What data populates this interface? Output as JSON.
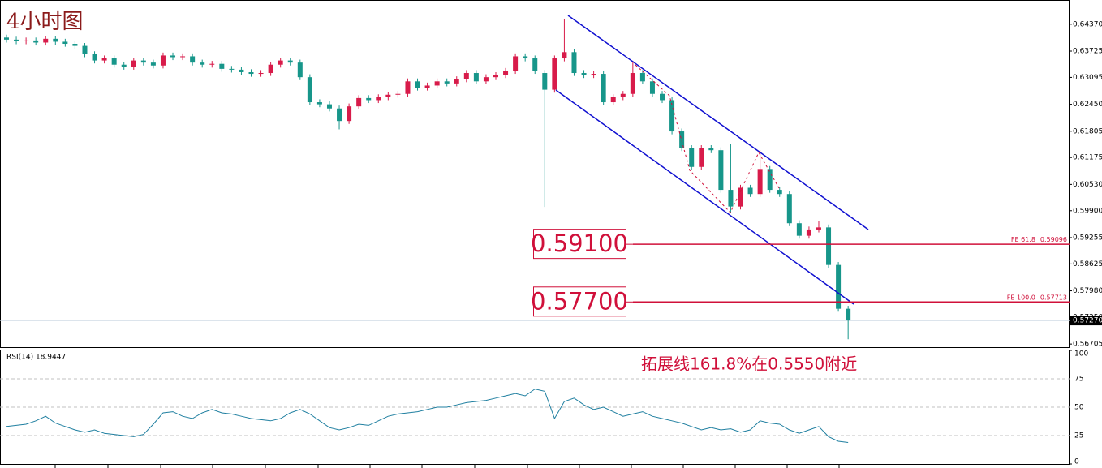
{
  "chart_data": [
    {
      "type": "candlestick",
      "title": "4小时图",
      "open": [
        0.6405,
        0.64,
        0.6396,
        0.6398,
        0.6393,
        0.6402,
        0.6395,
        0.639,
        0.6385,
        0.6365,
        0.635,
        0.6355,
        0.634,
        0.6335,
        0.635,
        0.6345,
        0.6338,
        0.6362,
        0.6358,
        0.636,
        0.6345,
        0.634,
        0.6342,
        0.633,
        0.6328,
        0.6322,
        0.6318,
        0.632,
        0.634,
        0.635,
        0.6345,
        0.631,
        0.625,
        0.6245,
        0.6235,
        0.6205,
        0.624,
        0.626,
        0.6255,
        0.6262,
        0.6268,
        0.627,
        0.63,
        0.6285,
        0.629,
        0.63,
        0.6295,
        0.6305,
        0.632,
        0.63,
        0.631,
        0.6315,
        0.6325,
        0.636,
        0.6355,
        0.632,
        0.628,
        0.6355,
        0.637,
        0.632,
        0.6315,
        0.6318,
        0.625,
        0.6262,
        0.627,
        0.632,
        0.63,
        0.627,
        0.6255,
        0.618,
        0.614,
        0.6095,
        0.614,
        0.6135,
        0.604,
        0.6,
        0.6045,
        0.603,
        0.609,
        0.604,
        0.603,
        0.596,
        0.593,
        0.5945,
        0.595,
        0.586,
        0.5755
      ],
      "high": [
        0.6412,
        0.6407,
        0.6405,
        0.6405,
        0.6409,
        0.6409,
        0.6402,
        0.6397,
        0.6392,
        0.6372,
        0.6362,
        0.6362,
        0.6347,
        0.6357,
        0.6357,
        0.6352,
        0.6369,
        0.6369,
        0.6367,
        0.6367,
        0.6352,
        0.6349,
        0.6349,
        0.6337,
        0.6335,
        0.6329,
        0.6327,
        0.6347,
        0.6357,
        0.6357,
        0.6352,
        0.6317,
        0.6257,
        0.6252,
        0.6242,
        0.6247,
        0.6267,
        0.6267,
        0.6269,
        0.6275,
        0.6277,
        0.6307,
        0.6307,
        0.6297,
        0.6307,
        0.6307,
        0.6312,
        0.6327,
        0.6327,
        0.6317,
        0.6322,
        0.6332,
        0.6367,
        0.6367,
        0.6362,
        0.6327,
        0.6362,
        0.645,
        0.6377,
        0.6327,
        0.6325,
        0.6325,
        0.6269,
        0.6277,
        0.6349,
        0.6327,
        0.6307,
        0.6277,
        0.6262,
        0.6187,
        0.6147,
        0.6147,
        0.6147,
        0.6142,
        0.615,
        0.6052,
        0.6052,
        0.6135,
        0.6097,
        0.6047,
        0.6037,
        0.5967,
        0.5952,
        0.5965,
        0.5957,
        0.5867,
        0.5762
      ],
      "low": [
        0.6393,
        0.6389,
        0.6389,
        0.6386,
        0.6386,
        0.6388,
        0.6383,
        0.6378,
        0.6358,
        0.6343,
        0.6343,
        0.6333,
        0.6328,
        0.6328,
        0.6338,
        0.6331,
        0.6331,
        0.6351,
        0.6351,
        0.6338,
        0.6333,
        0.6333,
        0.6323,
        0.6321,
        0.6315,
        0.6311,
        0.6311,
        0.6313,
        0.6333,
        0.6338,
        0.6303,
        0.6243,
        0.6238,
        0.6228,
        0.6185,
        0.6198,
        0.6233,
        0.6248,
        0.6248,
        0.6255,
        0.6261,
        0.6263,
        0.6278,
        0.6278,
        0.6283,
        0.6288,
        0.6288,
        0.6298,
        0.6293,
        0.6293,
        0.6303,
        0.6308,
        0.6318,
        0.6348,
        0.6318,
        0.5999,
        0.6273,
        0.6348,
        0.6313,
        0.6308,
        0.6308,
        0.6243,
        0.6243,
        0.6255,
        0.6263,
        0.6293,
        0.6263,
        0.6248,
        0.6173,
        0.6133,
        0.6088,
        0.6088,
        0.6128,
        0.6033,
        0.5985,
        0.5993,
        0.6023,
        0.6023,
        0.6033,
        0.6023,
        0.5953,
        0.5923,
        0.5923,
        0.5938,
        0.5853,
        0.5748,
        0.5682
      ],
      "close": [
        0.64,
        0.6396,
        0.6398,
        0.6393,
        0.6402,
        0.6395,
        0.639,
        0.6385,
        0.6365,
        0.635,
        0.6355,
        0.634,
        0.6335,
        0.635,
        0.6345,
        0.6338,
        0.6362,
        0.6358,
        0.636,
        0.6345,
        0.634,
        0.6342,
        0.633,
        0.6328,
        0.6322,
        0.6318,
        0.632,
        0.634,
        0.635,
        0.6345,
        0.631,
        0.625,
        0.6245,
        0.6235,
        0.6205,
        0.624,
        0.626,
        0.6255,
        0.6262,
        0.6268,
        0.627,
        0.63,
        0.6285,
        0.629,
        0.63,
        0.6295,
        0.6305,
        0.632,
        0.63,
        0.631,
        0.6315,
        0.6325,
        0.636,
        0.6355,
        0.6325,
        0.628,
        0.6355,
        0.637,
        0.632,
        0.6315,
        0.6318,
        0.625,
        0.6262,
        0.627,
        0.632,
        0.63,
        0.627,
        0.6255,
        0.618,
        0.614,
        0.6095,
        0.614,
        0.6135,
        0.604,
        0.6,
        0.6045,
        0.603,
        0.609,
        0.604,
        0.603,
        0.596,
        0.593,
        0.5945,
        0.595,
        0.586,
        0.5755,
        0.5727
      ],
      "up_color": "#d81b4a",
      "down_color": "#17968a",
      "ylim": [
        0.5663,
        0.6495
      ],
      "yticks": [
        {
          "value": 0.6437,
          "label": "0.64370"
        },
        {
          "value": 0.63725,
          "label": "0.63725"
        },
        {
          "value": 0.63095,
          "label": "0.63095"
        },
        {
          "value": 0.6245,
          "label": "0.62450"
        },
        {
          "value": 0.61805,
          "label": "0.61805"
        },
        {
          "value": 0.61175,
          "label": "0.61175"
        },
        {
          "value": 0.6053,
          "label": "0.60530"
        },
        {
          "value": 0.599,
          "label": "0.59900"
        },
        {
          "value": 0.59255,
          "label": "0.59255"
        },
        {
          "value": 0.58625,
          "label": "0.58625"
        },
        {
          "value": 0.5798,
          "label": "0.57980"
        },
        {
          "value": 0.5735,
          "label": "0.57350"
        },
        {
          "value": 0.56705,
          "label": "0.56705"
        }
      ],
      "last_price": {
        "value": 0.5727,
        "label": "0.57270"
      },
      "levels": [
        {
          "name": "FE 61.8",
          "value": 0.59096,
          "label": "0.59096",
          "callout": "0.59100"
        },
        {
          "name": "FE 100.0",
          "value": 0.57713,
          "label": "0.57713",
          "callout": "0.57700"
        }
      ]
    },
    {
      "type": "line",
      "title": "RSI(14) 18.9447",
      "color": "#1f7fa0",
      "values": [
        33,
        34,
        35,
        38,
        42,
        36,
        33,
        30,
        28,
        30,
        27,
        26,
        25,
        24,
        26,
        35,
        45,
        46,
        42,
        40,
        45,
        48,
        45,
        44,
        42,
        40,
        39,
        38,
        40,
        45,
        48,
        44,
        38,
        32,
        30,
        32,
        35,
        34,
        38,
        42,
        44,
        45,
        46,
        48,
        50,
        50,
        52,
        54,
        55,
        56,
        58,
        60,
        62,
        60,
        66,
        64,
        40,
        55,
        58,
        52,
        48,
        50,
        46,
        42,
        44,
        46,
        42,
        40,
        38,
        36,
        33,
        30,
        32,
        30,
        31,
        28,
        30,
        38,
        36,
        35,
        30,
        27,
        30,
        33,
        24,
        20,
        18.9447
      ],
      "ylim": [
        0,
        100
      ],
      "yticks": [
        0,
        25,
        50,
        75,
        100
      ],
      "grid": true,
      "annotation": "拓展线161.8%在0.5550附近"
    }
  ]
}
